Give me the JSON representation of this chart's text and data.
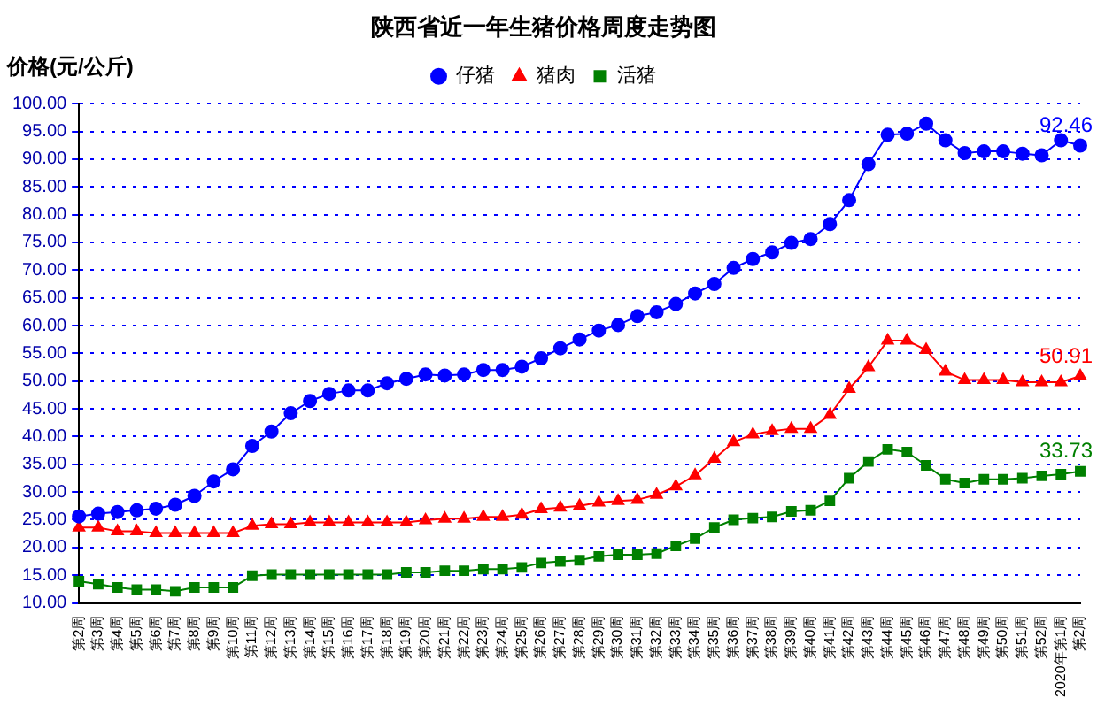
{
  "chart_data": {
    "type": "line",
    "title": "陕西省近一年生猪价格周度走势图",
    "ylabel": "价格(元/公斤)",
    "categories": [
      "第2周",
      "第3周",
      "第4周",
      "第5周",
      "第6周",
      "第7周",
      "第8周",
      "第9周",
      "第10周",
      "第11周",
      "第12周",
      "第13周",
      "第14周",
      "第15周",
      "第16周",
      "第17周",
      "第18周",
      "第19周",
      "第20周",
      "第21周",
      "第22周",
      "第23周",
      "第24周",
      "第25周",
      "第26周",
      "第27周",
      "第28周",
      "第29周",
      "第30周",
      "第31周",
      "第32周",
      "第33周",
      "第34周",
      "第35周",
      "第36周",
      "第37周",
      "第38周",
      "第39周",
      "第40周",
      "第41周",
      "第42周",
      "第43周",
      "第44周",
      "第45周",
      "第46周",
      "第47周",
      "第48周",
      "第49周",
      "第50周",
      "第51周",
      "第52周",
      "2020年第1周",
      "第2周"
    ],
    "series": [
      {
        "name": "仔猪",
        "color": "#0000ff",
        "marker": "circle",
        "values": [
          25.6,
          26.1,
          26.4,
          26.7,
          27.0,
          27.7,
          29.3,
          31.9,
          34.1,
          38.3,
          40.9,
          44.2,
          46.4,
          47.7,
          48.3,
          48.3,
          49.6,
          50.4,
          51.2,
          51.0,
          51.2,
          52.0,
          52.0,
          52.6,
          54.1,
          55.9,
          57.5,
          59.1,
          60.1,
          61.7,
          62.4,
          63.9,
          65.8,
          67.5,
          70.4,
          72.0,
          73.2,
          74.9,
          75.6,
          78.3,
          82.6,
          89.1,
          94.4,
          94.6,
          96.4,
          93.4,
          91.1,
          91.4,
          91.4,
          91.0,
          90.7,
          93.4,
          92.46
        ],
        "value_labels": [
          null,
          null,
          null,
          null,
          null,
          null,
          null,
          null,
          null,
          null,
          null,
          null,
          null,
          null,
          null,
          null,
          null,
          null,
          null,
          null,
          null,
          null,
          null,
          null,
          null,
          null,
          null,
          null,
          null,
          null,
          null,
          null,
          null,
          null,
          null,
          null,
          null,
          null,
          null,
          null,
          null,
          null,
          null,
          null,
          null,
          null,
          null,
          null,
          null,
          null,
          null,
          null,
          "92.46"
        ]
      },
      {
        "name": "猪肉",
        "color": "#ff0000",
        "marker": "triangle",
        "values": [
          23.6,
          23.6,
          22.9,
          22.9,
          22.6,
          22.6,
          22.6,
          22.6,
          22.6,
          23.9,
          24.2,
          24.2,
          24.5,
          24.5,
          24.5,
          24.5,
          24.5,
          24.5,
          24.9,
          25.2,
          25.2,
          25.5,
          25.5,
          25.9,
          26.9,
          27.2,
          27.5,
          28.1,
          28.4,
          28.6,
          29.5,
          31.0,
          33.0,
          36.0,
          39.0,
          40.4,
          41.0,
          41.4,
          41.4,
          43.9,
          48.6,
          52.5,
          57.3,
          57.3,
          55.6,
          51.7,
          50.2,
          50.2,
          50.2,
          49.8,
          49.8,
          49.8,
          50.91
        ],
        "value_labels": [
          null,
          null,
          null,
          null,
          null,
          null,
          null,
          null,
          null,
          null,
          null,
          null,
          null,
          null,
          null,
          null,
          null,
          null,
          null,
          null,
          null,
          null,
          null,
          null,
          null,
          null,
          null,
          null,
          null,
          null,
          null,
          null,
          null,
          null,
          null,
          null,
          null,
          null,
          null,
          null,
          null,
          null,
          null,
          null,
          null,
          null,
          null,
          null,
          null,
          null,
          null,
          null,
          "50.91"
        ]
      },
      {
        "name": "活猪",
        "color": "#008000",
        "marker": "square",
        "values": [
          13.9,
          13.4,
          12.8,
          12.4,
          12.4,
          12.1,
          12.8,
          12.8,
          12.8,
          14.9,
          15.1,
          15.1,
          15.1,
          15.1,
          15.1,
          15.1,
          15.1,
          15.5,
          15.5,
          15.8,
          15.8,
          16.1,
          16.1,
          16.4,
          17.2,
          17.5,
          17.7,
          18.4,
          18.7,
          18.7,
          18.9,
          20.3,
          21.6,
          23.6,
          25.0,
          25.3,
          25.5,
          26.5,
          26.7,
          28.4,
          32.5,
          35.5,
          37.7,
          37.2,
          34.8,
          32.3,
          31.6,
          32.3,
          32.3,
          32.5,
          32.9,
          33.2,
          33.73
        ],
        "value_labels": [
          null,
          null,
          null,
          null,
          null,
          null,
          null,
          null,
          null,
          null,
          null,
          null,
          null,
          null,
          null,
          null,
          null,
          null,
          null,
          null,
          null,
          null,
          null,
          null,
          null,
          null,
          null,
          null,
          null,
          null,
          null,
          null,
          null,
          null,
          null,
          null,
          null,
          null,
          null,
          null,
          null,
          null,
          null,
          null,
          null,
          null,
          null,
          null,
          null,
          null,
          null,
          null,
          "33.73"
        ]
      }
    ],
    "ylim": [
      10,
      100
    ],
    "yticks": [
      {
        "value": 10,
        "label": "10.00"
      },
      {
        "value": 15,
        "label": "15.00"
      },
      {
        "value": 20,
        "label": "20.00"
      },
      {
        "value": 25,
        "label": "25.00"
      },
      {
        "value": 30,
        "label": "30.00"
      },
      {
        "value": 35,
        "label": "35.00"
      },
      {
        "value": 40,
        "label": "40.00"
      },
      {
        "value": 45,
        "label": "45.00"
      },
      {
        "value": 50,
        "label": "50.00"
      },
      {
        "value": 55,
        "label": "55.00"
      },
      {
        "value": 60,
        "label": "60.00"
      },
      {
        "value": 65,
        "label": "65.00"
      },
      {
        "value": 70,
        "label": "70.00"
      },
      {
        "value": 75,
        "label": "75.00"
      },
      {
        "value": 80,
        "label": "80.00"
      },
      {
        "value": 85,
        "label": "85.00"
      },
      {
        "value": 90,
        "label": "90.00"
      },
      {
        "value": 95,
        "label": "95.00"
      },
      {
        "value": 100,
        "label": "100.00"
      }
    ],
    "grid": "y",
    "legend": "top",
    "line_style": "solid"
  }
}
